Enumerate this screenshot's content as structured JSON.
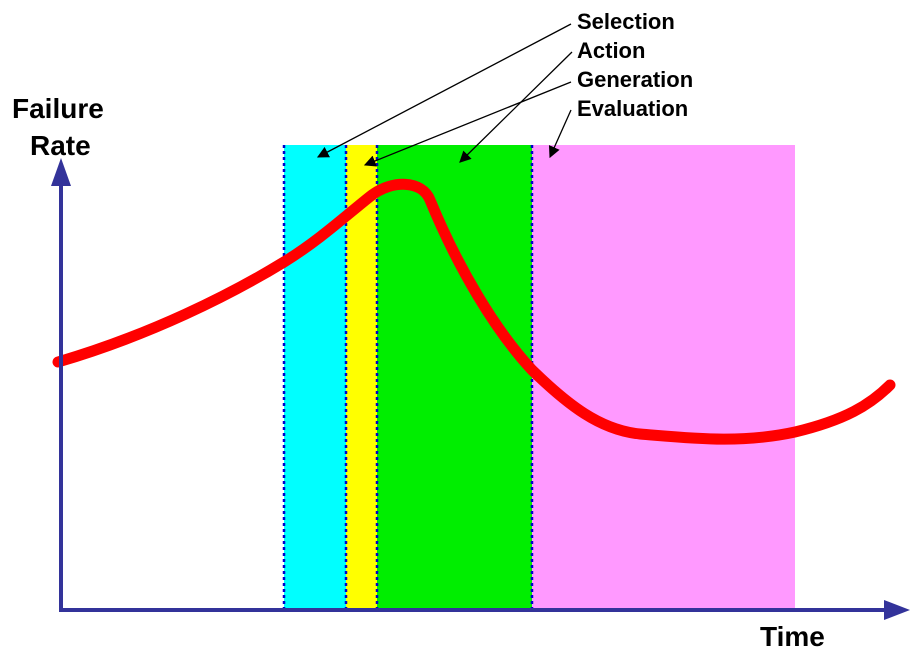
{
  "axes": {
    "y_title_line1": "Failure",
    "y_title_line2": "Rate",
    "x_title": "Time",
    "axis_color": "#33339a"
  },
  "phases": [
    {
      "key": "selection",
      "label": "Selection",
      "color": "#00ffff"
    },
    {
      "key": "action",
      "label": "Action",
      "color": "#ffff00"
    },
    {
      "key": "generation",
      "label": "Generation",
      "color": "#00ee00"
    },
    {
      "key": "evaluation",
      "label": "Evaluation",
      "color": "#ff99ff"
    }
  ],
  "curve": {
    "name": "failure-rate-curve",
    "color": "#ff0000"
  },
  "divider_color": "#0000cc"
}
